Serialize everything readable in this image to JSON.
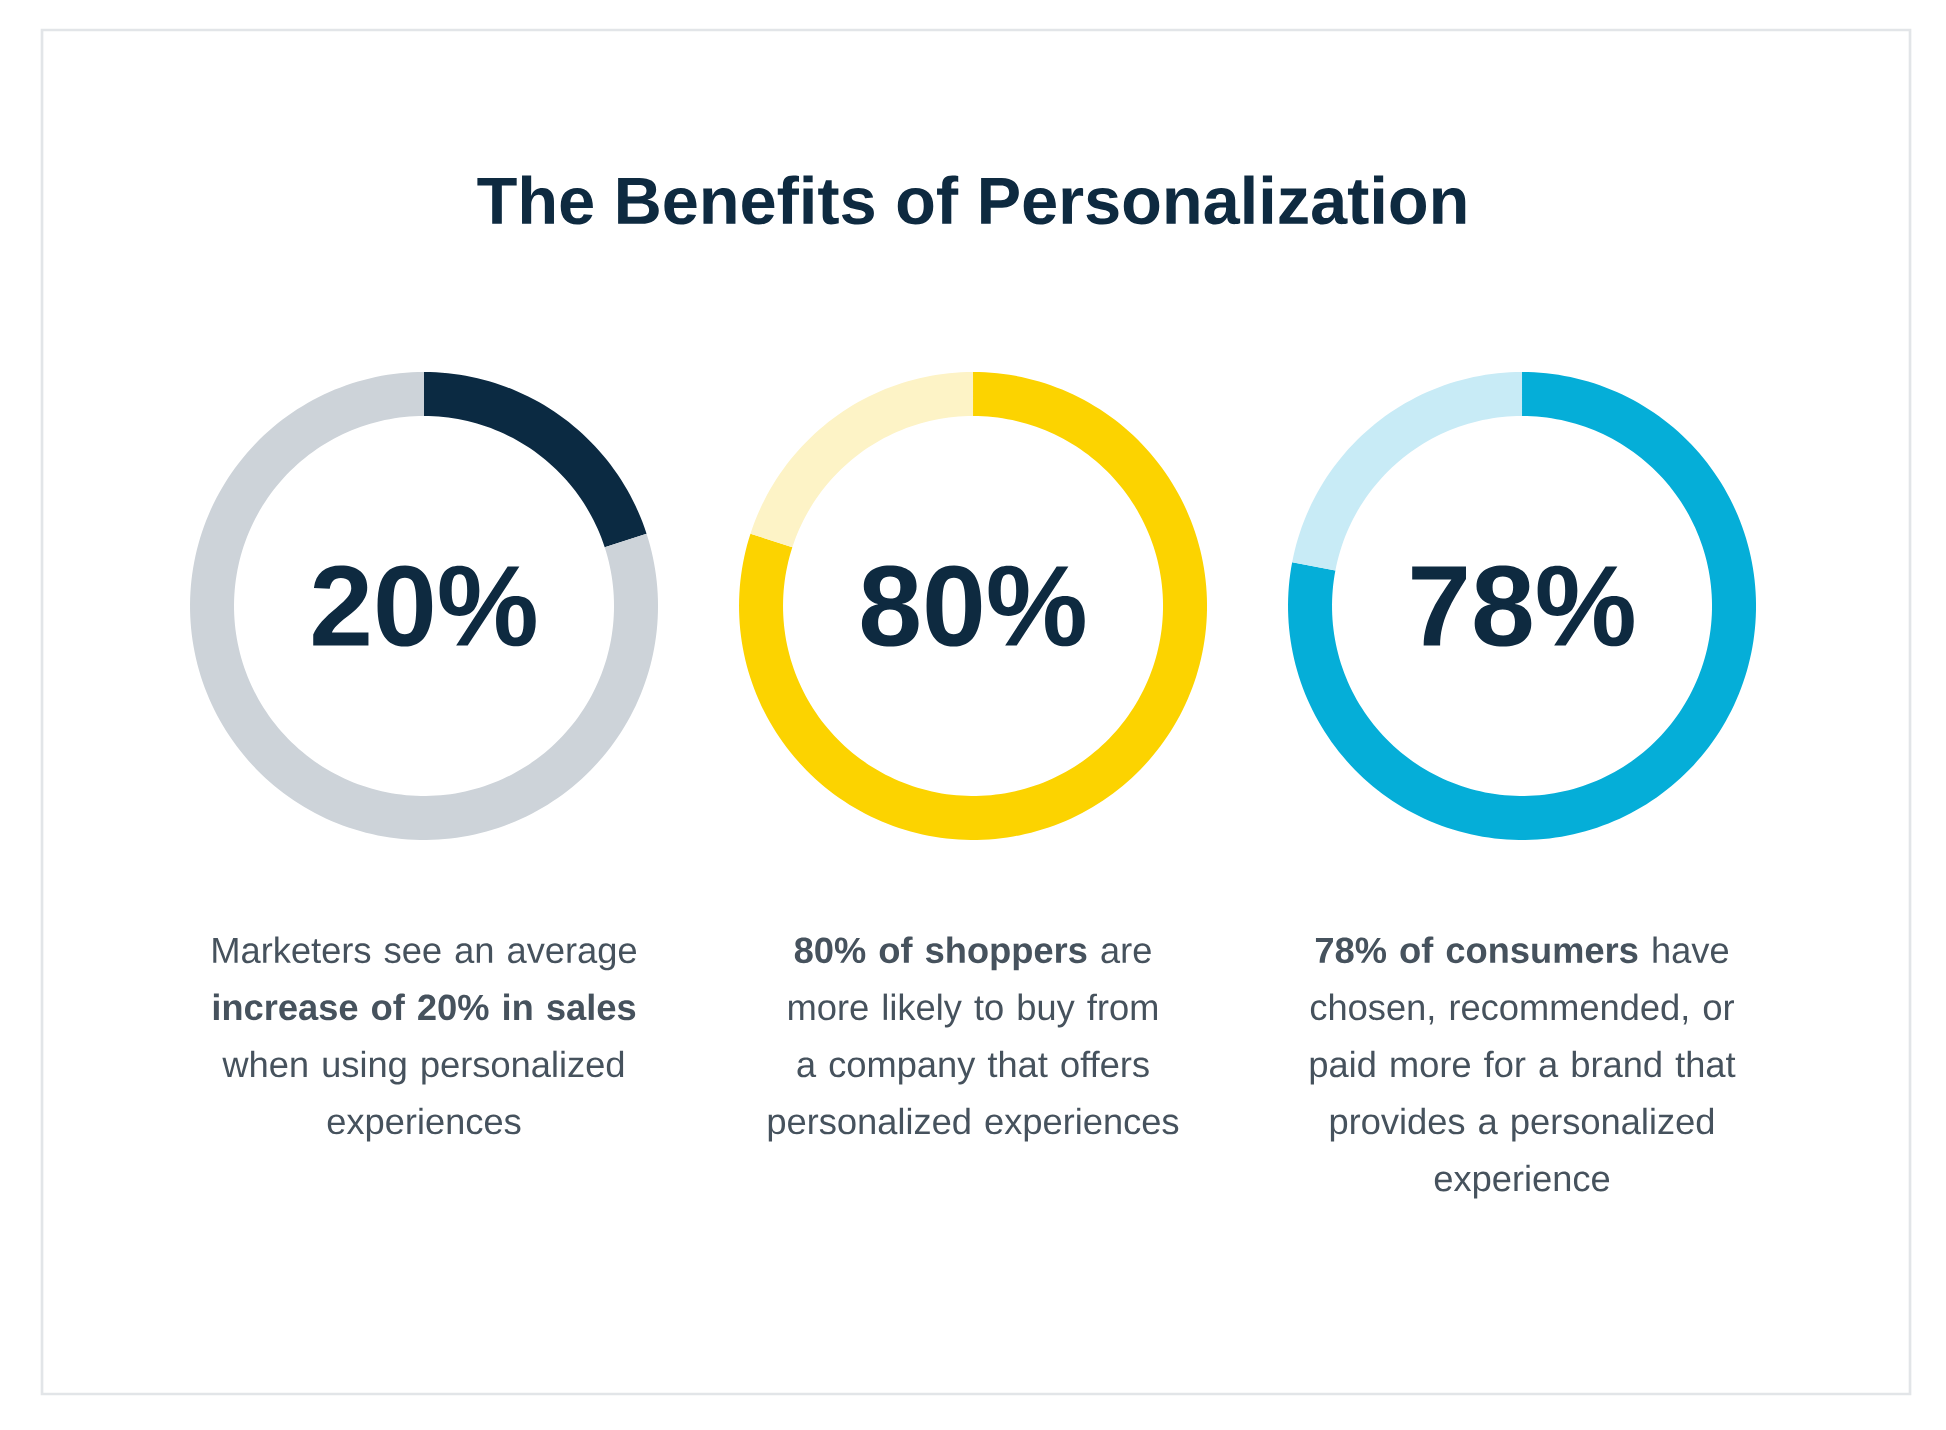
{
  "chart_data": [
    {
      "type": "donut",
      "title": "The Benefits of Personalization",
      "categories": [
        null,
        null
      ],
      "values": [
        20,
        80
      ],
      "colors": [
        "#0b2a42",
        "#cdd3d9"
      ],
      "value_labels": [
        "20%",
        null
      ],
      "annotations": [
        "Marketers see an average\n**increase of 20% in sales**\nwhen using personalized\nexperiences"
      ]
    },
    {
      "type": "donut",
      "categories": [
        null,
        null
      ],
      "values": [
        80,
        20
      ],
      "colors": [
        "#fcd300",
        "#fdf3c6"
      ],
      "value_labels": [
        "80%",
        null
      ],
      "annotations": [
        "**80% of shoppers** are\nmore likely to buy from\na company that offers\npersonalized experiences"
      ]
    },
    {
      "type": "donut",
      "categories": [
        null,
        null
      ],
      "values": [
        78,
        22
      ],
      "colors": [
        "#05aed8",
        "#c8ebf6"
      ],
      "value_labels": [
        "78%",
        null
      ],
      "annotations": [
        "**78% of consumers** have\nchosen, recommended, or\npaid more for a brand that\nprovides a personalized\nexperience"
      ]
    }
  ]
}
